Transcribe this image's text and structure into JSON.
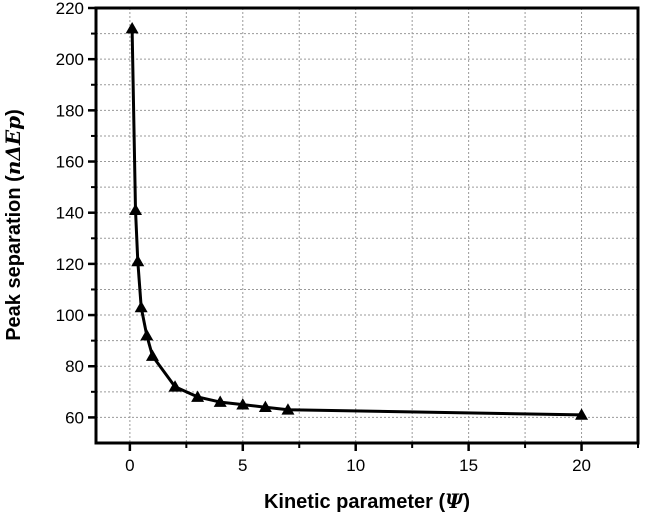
{
  "chart_data": {
    "type": "line",
    "title": "",
    "xlabel": "Kinetic parameter (",
    "xlabel_symbol": "Ψ",
    "xlabel_end": ")",
    "ylabel": "Peak separation (",
    "ylabel_symbol": "nΔEp",
    "ylabel_end": ")",
    "xlim": [
      -1.5,
      22.5
    ],
    "ylim": [
      50,
      220
    ],
    "x_ticks": [
      0,
      5,
      10,
      15,
      20
    ],
    "y_ticks": [
      60,
      80,
      100,
      120,
      140,
      160,
      180,
      200,
      220
    ],
    "x_tick_labels": [
      "0",
      "5",
      "10",
      "15",
      "20"
    ],
    "y_tick_labels": [
      "60",
      "80",
      "100",
      "120",
      "140",
      "160",
      "180",
      "200",
      "220"
    ],
    "grid": true,
    "marker": "triangle",
    "series": [
      {
        "x": [
          0.1,
          0.25,
          0.35,
          0.5,
          0.75,
          1,
          2,
          3,
          4,
          5,
          6,
          7,
          20
        ],
        "y": [
          212,
          141,
          121,
          103,
          92,
          84,
          72,
          68,
          66,
          65,
          64,
          63,
          61
        ]
      }
    ]
  }
}
